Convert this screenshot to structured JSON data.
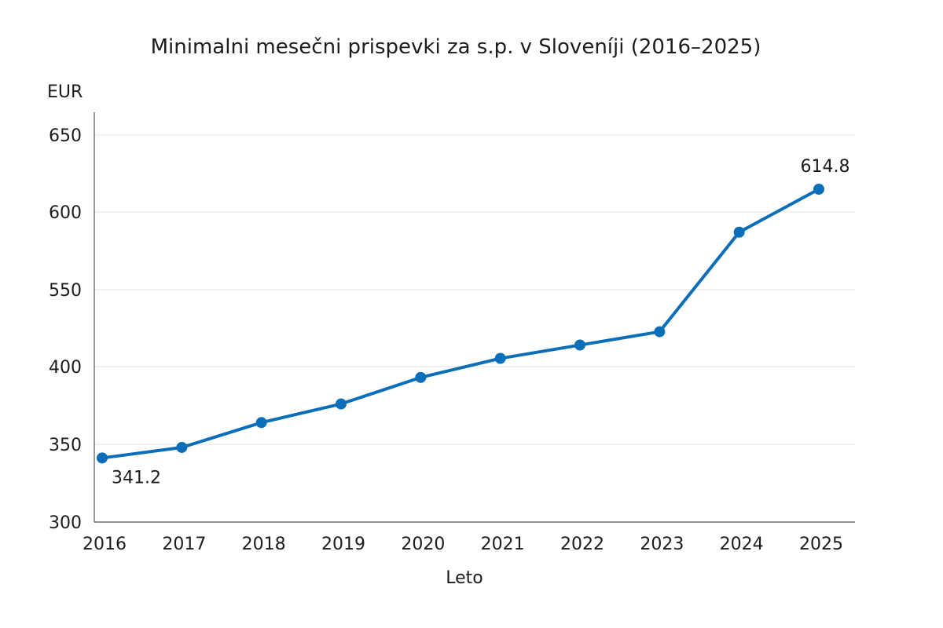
{
  "chart_data": {
    "type": "line",
    "title": "Minimalni mesečni prispevki za s.p. v Sloveníji (2016–2025)",
    "xlabel": "Leto",
    "ylabel": "EUR",
    "categories": [
      "2016",
      "2017",
      "2018",
      "2019",
      "2020",
      "2021",
      "2022",
      "2023",
      "2024",
      "2025"
    ],
    "y_tick_labels": [
      "300",
      "350",
      "400",
      "550",
      "600",
      "650"
    ],
    "series": [
      {
        "name": "Minimalni mesečni prispevki",
        "values": [
          341.2,
          348,
          364,
          376,
          393,
          416,
          442,
          468,
          587,
          614.8
        ],
        "color": "#0a6fb8"
      }
    ],
    "annotations": [
      {
        "category": "2016",
        "text": "341.2",
        "placement": "below-right"
      },
      {
        "category": "2025",
        "text": "614.8",
        "placement": "above"
      }
    ],
    "grid": true
  }
}
